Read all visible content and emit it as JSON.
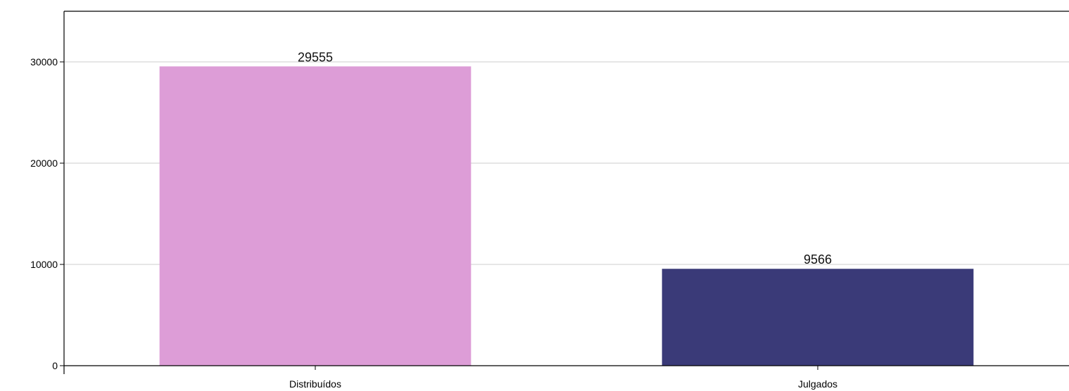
{
  "chart_data": {
    "type": "bar",
    "categories": [
      "Distribuídos",
      "Julgados"
    ],
    "values": [
      29555,
      9566
    ],
    "data_labels": [
      "29555",
      "9566"
    ],
    "colors": [
      "#dd9dd7",
      "#3a3a78"
    ],
    "ylim": [
      0,
      35000
    ],
    "yticks": [
      0,
      10000,
      20000,
      30000
    ],
    "ytick_labels": [
      "0",
      "10000",
      "20000",
      "30000"
    ],
    "grid": true,
    "legend": "none"
  }
}
